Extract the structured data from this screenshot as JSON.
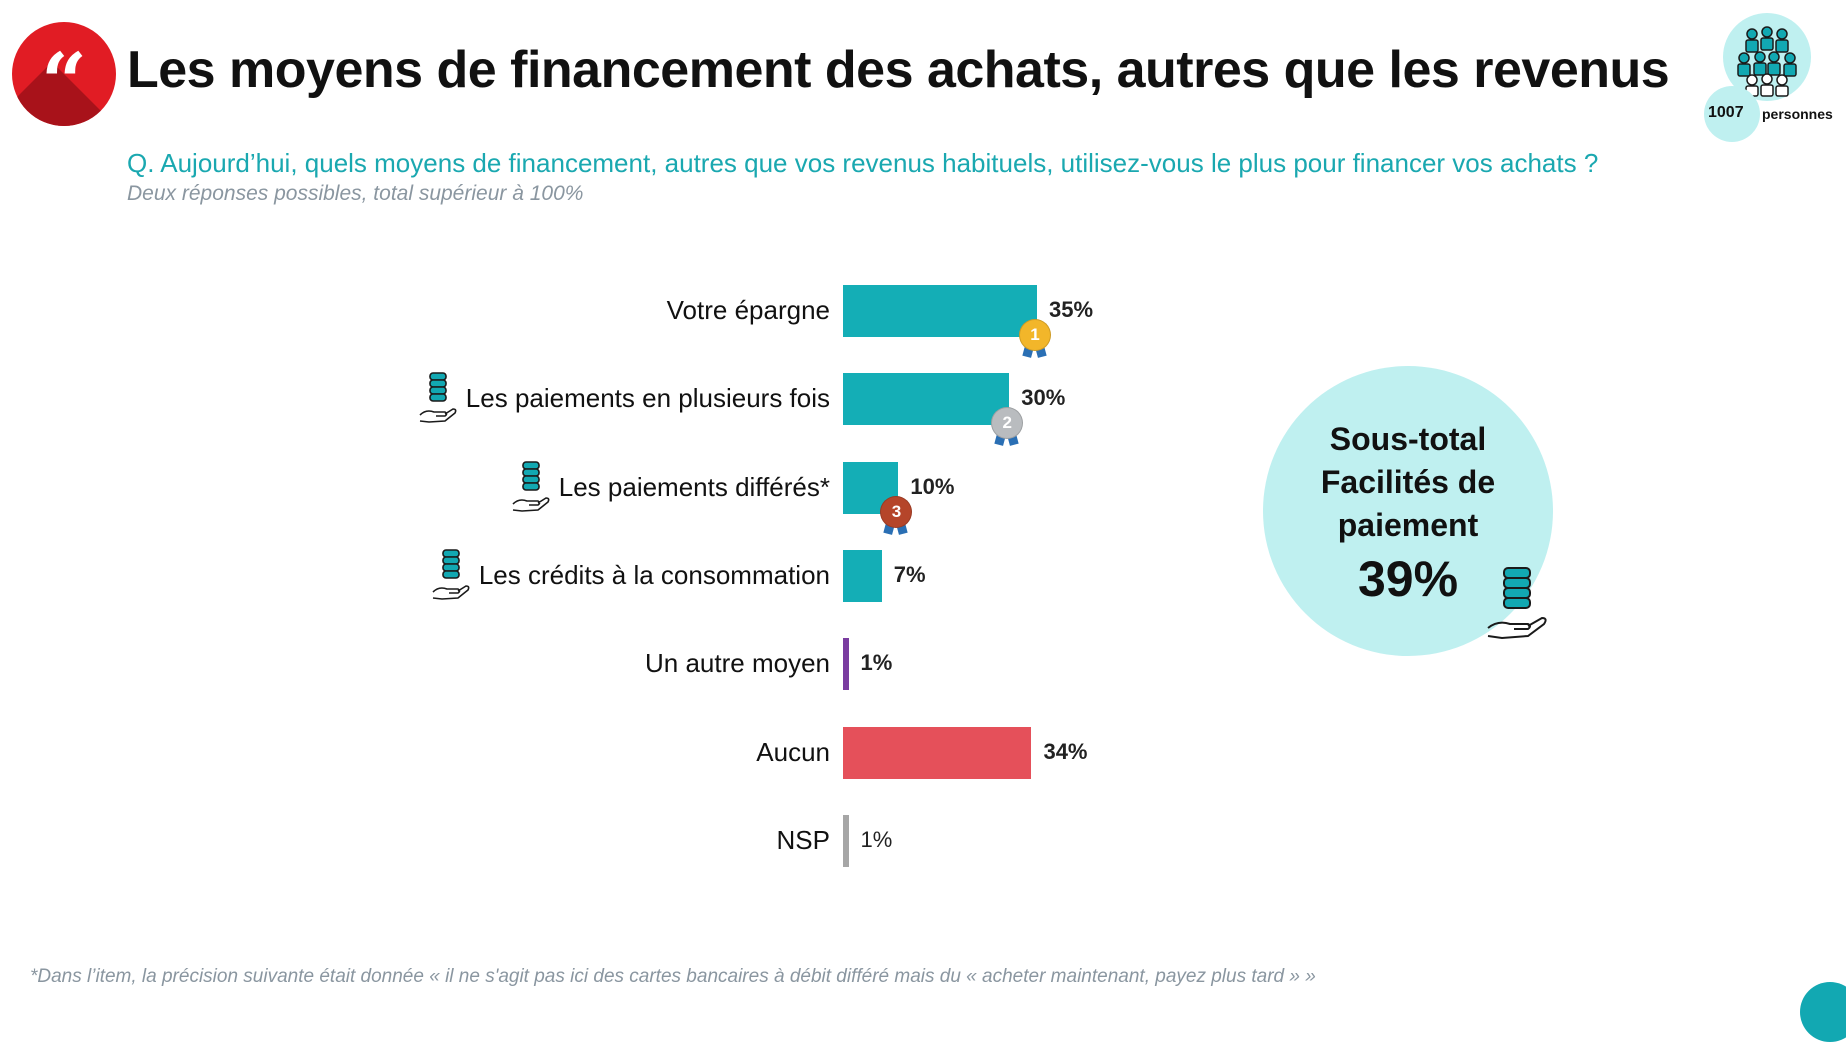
{
  "header": {
    "quote_glyph": "“",
    "title": "Les moyens de financement des achats, autres que les revenus",
    "sample_count": "1007",
    "sample_unit": "personnes"
  },
  "question": "Q. Aujourd’hui, quels moyens de financement, autres que vos revenus habituels, utilisez-vous le plus pour financer vos achats ?",
  "subnote": "Deux réponses possibles, total supérieur à 100%",
  "chart_data": {
    "type": "bar",
    "orientation": "horizontal",
    "categories": [
      "Votre épargne",
      "Les paiements en plusieurs fois",
      "Les paiements différés*",
      "Les crédits à la consommation",
      "Un autre moyen",
      "Aucun",
      "NSP"
    ],
    "values": [
      35,
      30,
      10,
      7,
      1,
      34,
      1
    ],
    "value_labels": [
      "35%",
      "30%",
      "10%",
      "7%",
      "1%",
      "34%",
      "1%"
    ],
    "bar_colors": [
      "#14aeb6",
      "#14aeb6",
      "#14aeb6",
      "#14aeb6",
      "#7a3ca0",
      "#e5505a",
      "#a6a6a6"
    ],
    "payment_facility_icon": [
      false,
      true,
      true,
      true,
      false,
      false,
      false
    ],
    "rank_medals": [
      {
        "index": 0,
        "rank": "1",
        "color": "#f2b62a"
      },
      {
        "index": 1,
        "rank": "2",
        "color": "#b9bcbf"
      },
      {
        "index": 2,
        "rank": "3",
        "color": "#b5452a"
      }
    ],
    "xlim": [
      0,
      35
    ]
  },
  "subtotal": {
    "title_lines": [
      "Sous-total",
      "Facilités de",
      "paiement"
    ],
    "value": "39%"
  },
  "footnote": "*Dans l’item, la précision suivante était donnée « il ne s'agit pas ici des cartes bancaires à débit différé mais du « acheter maintenant, payez plus tard » »",
  "icons": {
    "quote": "quote-icon",
    "people": "people-group-icon",
    "payment": "coins-in-hand-icon",
    "medal": "medal-icon"
  }
}
